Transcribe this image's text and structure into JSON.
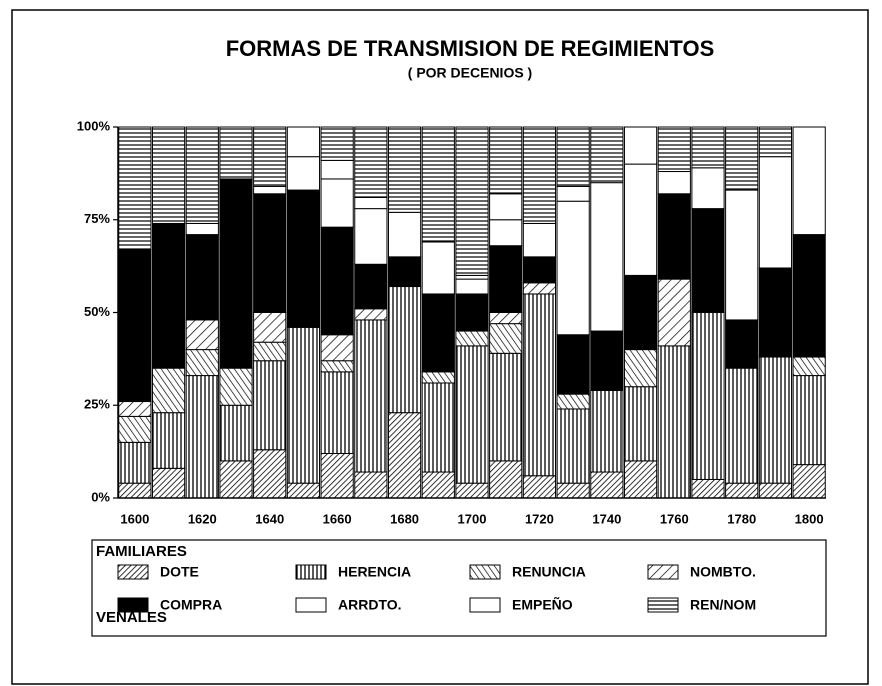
{
  "chart_data": {
    "type": "stacked_bar",
    "title": "FORMAS DE TRANSMISION DE REGIMIENTOS",
    "subtitle": "( POR DECENIOS )",
    "categories": [
      1600,
      null,
      1620,
      null,
      1640,
      null,
      1660,
      null,
      1680,
      null,
      1700,
      null,
      1720,
      null,
      1740,
      null,
      1760,
      null,
      1780,
      null,
      1800
    ],
    "legend_groups": [
      "FAMILIARES",
      "VENALES"
    ],
    "series": [
      {
        "name": "DOTE",
        "color": "#000000",
        "pattern": "hatch-fine",
        "values": [
          4,
          8,
          0,
          10,
          13,
          4,
          12,
          7,
          23,
          7,
          4,
          10,
          6,
          4,
          7,
          10,
          0,
          5,
          4,
          4,
          9
        ]
      },
      {
        "name": "HERENCIA",
        "color": "#000000",
        "pattern": "vertical",
        "values": [
          11,
          15,
          33,
          15,
          24,
          42,
          22,
          41,
          34,
          24,
          37,
          29,
          49,
          20,
          22,
          20,
          41,
          45,
          31,
          34,
          24
        ]
      },
      {
        "name": "RENUNCIA",
        "color": "#000000",
        "pattern": "hatch-back",
        "values": [
          7,
          12,
          7,
          10,
          5,
          0,
          3,
          0,
          0,
          3,
          4,
          8,
          0,
          4,
          0,
          10,
          0,
          0,
          0,
          0,
          5
        ]
      },
      {
        "name": "NOMBTO.",
        "color": "#000000",
        "pattern": "hatch-wide",
        "values": [
          4,
          0,
          8,
          0,
          8,
          0,
          7,
          3,
          0,
          0,
          0,
          3,
          3,
          0,
          0,
          0,
          18,
          0,
          0,
          0,
          0
        ]
      },
      {
        "name": "COMPRA",
        "color": "#000000",
        "values": [
          41,
          39,
          23,
          51,
          32,
          37,
          29,
          12,
          8,
          21,
          10,
          18,
          7,
          16,
          16,
          20,
          23,
          28,
          13,
          24,
          33
        ]
      },
      {
        "name": "ARRDTO.",
        "color": "#ffffff",
        "values": [
          0,
          0,
          3,
          0,
          2,
          9,
          13,
          15,
          12,
          14,
          4,
          7,
          9,
          36,
          40,
          30,
          6,
          11,
          35,
          30,
          29
        ]
      },
      {
        "name": "EMPEÑO",
        "color": "#ffffff",
        "values": [
          0,
          0,
          0,
          0,
          0,
          8,
          5,
          3,
          0,
          0,
          1,
          7,
          0,
          4,
          0,
          10,
          0,
          0,
          0,
          0,
          0
        ]
      },
      {
        "name": "REN/NOM",
        "color": "#000000",
        "pattern": "horizontal",
        "values": [
          33,
          26,
          26,
          14,
          16,
          0,
          9,
          19,
          23,
          31,
          40,
          18,
          26,
          16,
          15,
          0,
          12,
          11,
          17,
          8,
          0
        ]
      }
    ],
    "ylim": [
      0,
      100
    ],
    "yticks": [
      {
        "value": 0,
        "label": "0%"
      },
      {
        "value": 25,
        "label": "25%"
      },
      {
        "value": 50,
        "label": "50%"
      },
      {
        "value": 75,
        "label": "75%"
      },
      {
        "value": 100,
        "label": "100%"
      }
    ]
  }
}
